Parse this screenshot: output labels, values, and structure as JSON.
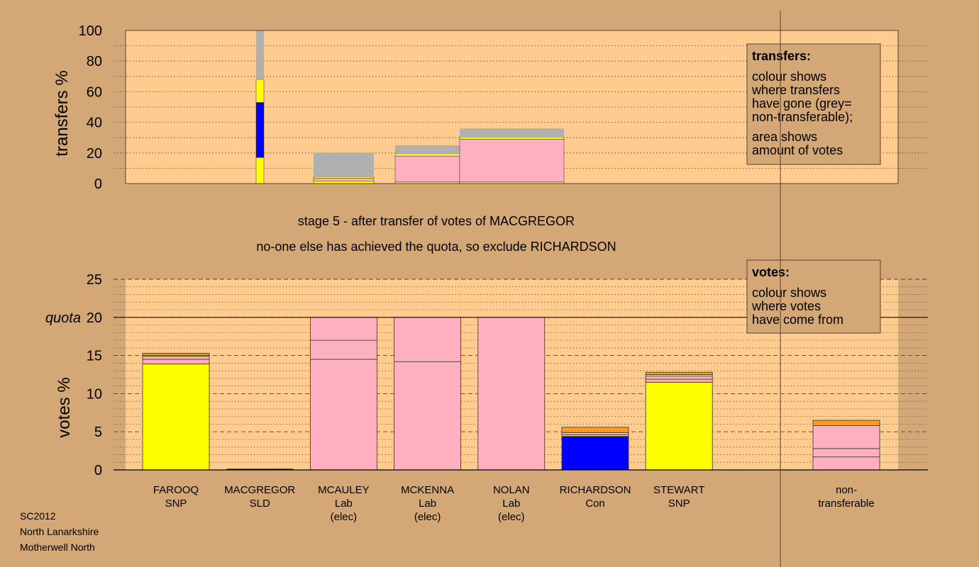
{
  "chart_data": [
    {
      "type": "bar",
      "ylabel": "transfers %",
      "ylim": [
        0,
        100
      ],
      "y_ticks": [
        0,
        20,
        40,
        60,
        80,
        100
      ],
      "grid": "dotted",
      "segments": [
        {
          "candidate": "MACGREGOR",
          "segments": [
            {
              "from": 0,
              "to": 17,
              "color": "#ffff00"
            },
            {
              "from": 17,
              "to": 53,
              "color": "#0000ff"
            },
            {
              "from": 53,
              "to": 68,
              "color": "#ffff00"
            },
            {
              "from": 68,
              "to": 100,
              "color": "#b0b0b0"
            }
          ]
        },
        {
          "candidate": "MCAULEY",
          "segments": [
            {
              "from": 0,
              "to": 1.5,
              "color": "#ffff00"
            },
            {
              "from": 1.5,
              "to": 3.5,
              "color": "#ffb0c0"
            },
            {
              "from": 3.5,
              "to": 4.5,
              "color": "#ffff00"
            },
            {
              "from": 4.5,
              "to": 20,
              "color": "#b0b0b0"
            }
          ]
        },
        {
          "candidate": "MCKENNA",
          "segments": [
            {
              "from": 0,
              "to": 1,
              "color": "#ffff00"
            },
            {
              "from": 1,
              "to": 18,
              "color": "#ffb0c0"
            },
            {
              "from": 18,
              "to": 19.5,
              "color": "#ffff00"
            },
            {
              "from": 19.5,
              "to": 25,
              "color": "#b0b0b0"
            }
          ]
        },
        {
          "candidate": "NOLAN",
          "segments": [
            {
              "from": 0,
              "to": 1,
              "color": "#ffff00"
            },
            {
              "from": 1,
              "to": 29,
              "color": "#ffb0c0"
            },
            {
              "from": 29,
              "to": 30.5,
              "color": "#ffff00"
            },
            {
              "from": 30.5,
              "to": 36,
              "color": "#b0b0b0"
            }
          ]
        }
      ],
      "legend": {
        "title": "transfers:",
        "lines": [
          "colour shows",
          "where transfers",
          "have gone (grey=",
          "non-transferable);",
          "area shows",
          "amount of votes"
        ]
      }
    },
    {
      "type": "bar",
      "ylabel": "votes %",
      "ylim": [
        0,
        25
      ],
      "y_ticks": [
        0,
        5,
        10,
        15,
        20,
        25
      ],
      "quota": 20,
      "quota_label": "quota",
      "grid": "dashed",
      "categories": [
        {
          "name": "FAROOQ",
          "party": "SNP",
          "note": "",
          "segments": [
            {
              "from": 0,
              "to": 13.9,
              "color": "#ffff00"
            },
            {
              "from": 13.9,
              "to": 14.5,
              "color": "#ffb0c0"
            },
            {
              "from": 14.5,
              "to": 14.9,
              "color": "#ffb0c0"
            },
            {
              "from": 14.9,
              "to": 15.0,
              "color": "#ffff00"
            },
            {
              "from": 15.0,
              "to": 15.3,
              "color": "#ff9a1e"
            }
          ]
        },
        {
          "name": "MACGREGOR",
          "party": "SLD",
          "note": "",
          "segments": []
        },
        {
          "name": "MCAULEY",
          "party": "Lab",
          "note": "(elec)",
          "segments": [
            {
              "from": 0,
              "to": 14.5,
              "color": "#ffb0c0"
            },
            {
              "from": 14.5,
              "to": 17.0,
              "color": "#ffb0c0"
            },
            {
              "from": 17.0,
              "to": 20.0,
              "color": "#ffb0c0"
            }
          ]
        },
        {
          "name": "MCKENNA",
          "party": "Lab",
          "note": "(elec)",
          "segments": [
            {
              "from": 0,
              "to": 14.2,
              "color": "#ffb0c0"
            },
            {
              "from": 14.2,
              "to": 20.0,
              "color": "#ffb0c0"
            }
          ]
        },
        {
          "name": "NOLAN",
          "party": "Lab",
          "note": "(elec)",
          "segments": [
            {
              "from": 0,
              "to": 20.0,
              "color": "#ffb0c0"
            }
          ]
        },
        {
          "name": "RICHARDSON",
          "party": "Con",
          "note": "",
          "segments": [
            {
              "from": 0,
              "to": 4.4,
              "color": "#0000ff"
            },
            {
              "from": 4.4,
              "to": 4.6,
              "color": "#ffff00"
            },
            {
              "from": 4.6,
              "to": 4.9,
              "color": "#ffb0c0"
            },
            {
              "from": 4.9,
              "to": 5.6,
              "color": "#ff9a1e"
            }
          ]
        },
        {
          "name": "STEWART",
          "party": "SNP",
          "note": "",
          "segments": [
            {
              "from": 0,
              "to": 11.5,
              "color": "#ffff00"
            },
            {
              "from": 11.5,
              "to": 11.9,
              "color": "#ffb0c0"
            },
            {
              "from": 11.9,
              "to": 12.3,
              "color": "#ffb0c0"
            },
            {
              "from": 12.3,
              "to": 12.5,
              "color": "#ffff00"
            },
            {
              "from": 12.5,
              "to": 12.8,
              "color": "#ff9a1e"
            }
          ]
        }
      ],
      "non_transferable": {
        "line1": "non-",
        "line2": "transferable",
        "segments": [
          {
            "from": 0,
            "to": 1.7,
            "color": "#ffb0c0"
          },
          {
            "from": 1.7,
            "to": 2.8,
            "color": "#ffb0c0"
          },
          {
            "from": 2.8,
            "to": 5.8,
            "color": "#ffb0c0"
          },
          {
            "from": 5.8,
            "to": 6.5,
            "color": "#ff9a1e"
          }
        ]
      },
      "legend": {
        "title": "votes:",
        "lines": [
          "colour shows",
          "where votes",
          "have come from"
        ]
      }
    }
  ],
  "stage_text": "stage 5 - after transfer of votes of MACGREGOR",
  "decision_text": "no-one else has achieved the quota, so exclude RICHARDSON",
  "footer": [
    "SC2012",
    "North Lanarkshire",
    "Motherwell North"
  ],
  "colors": {
    "background": "#d4a876",
    "plot_bg": "#ffcc8f",
    "grey": "#b0b0b0",
    "yellow": "#ffff00",
    "blue": "#0000ff",
    "pink": "#ffb0c0",
    "orange": "#ff9a1e"
  }
}
